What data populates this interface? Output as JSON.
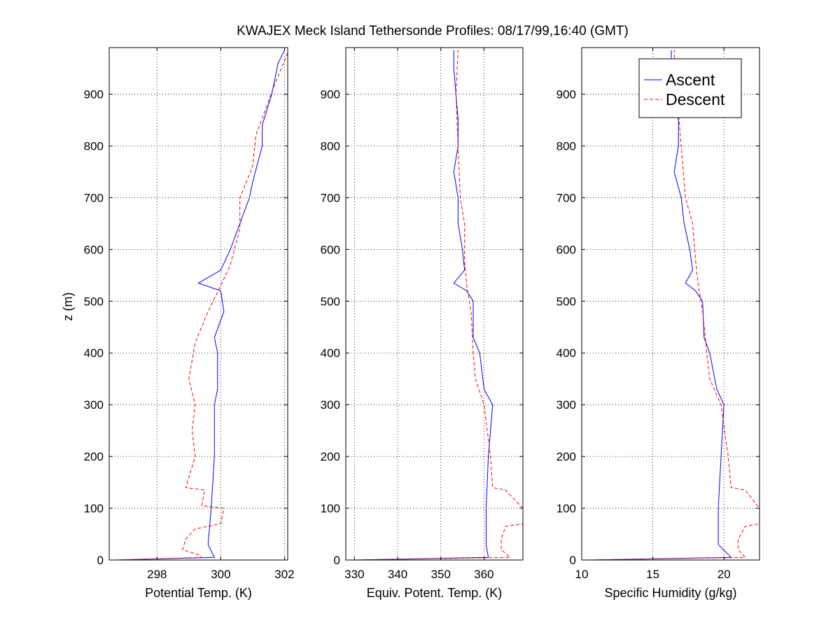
{
  "figure": {
    "title": "KWAJEX Meck Island Tethersonde Profiles: 08/17/99,16:40 (GMT)",
    "ylabel": "z (m)"
  },
  "legend": {
    "placement": "top-right of third panel",
    "items": [
      {
        "label": "Ascent",
        "color": "#0000ff",
        "dash": "solid"
      },
      {
        "label": "Descent",
        "color": "#ff0000",
        "dash": "dashed"
      }
    ]
  },
  "colors": {
    "ascent": "#0000ff",
    "descent": "#ff0000",
    "grid": "#000000"
  },
  "chart_data": [
    {
      "type": "line",
      "xlabel": "Potential Temp. (K)",
      "xlim": [
        296.5,
        302.1
      ],
      "xticks": [
        298,
        300,
        302
      ],
      "ylim": [
        0,
        990
      ],
      "yticks": [
        0,
        100,
        200,
        300,
        400,
        500,
        600,
        700,
        800,
        900
      ],
      "grid": true,
      "series": [
        {
          "name": "Ascent",
          "points": [
            [
              296.7,
              0
            ],
            [
              299.8,
              5
            ],
            [
              299.6,
              30
            ],
            [
              299.7,
              100
            ],
            [
              299.8,
              200
            ],
            [
              299.8,
              300
            ],
            [
              299.9,
              330
            ],
            [
              299.9,
              400
            ],
            [
              299.8,
              430
            ],
            [
              300.1,
              480
            ],
            [
              300,
              520
            ],
            [
              299.3,
              535
            ],
            [
              300,
              560
            ],
            [
              300.3,
              600
            ],
            [
              300.6,
              650
            ],
            [
              300.9,
              700
            ],
            [
              301,
              730
            ],
            [
              301.3,
              800
            ],
            [
              301.3,
              840
            ],
            [
              301.6,
              900
            ],
            [
              301.7,
              930
            ],
            [
              301.8,
              960
            ],
            [
              302,
              985
            ]
          ]
        },
        {
          "name": "Descent",
          "points": [
            [
              296.7,
              0
            ],
            [
              299.4,
              5
            ],
            [
              299.3,
              10
            ],
            [
              298.8,
              20
            ],
            [
              298.9,
              40
            ],
            [
              299.2,
              60
            ],
            [
              300,
              70
            ],
            [
              300.1,
              100
            ],
            [
              299.4,
              105
            ],
            [
              299.5,
              135
            ],
            [
              298.9,
              140
            ],
            [
              299.2,
              200
            ],
            [
              299.1,
              250
            ],
            [
              299.2,
              300
            ],
            [
              299,
              350
            ],
            [
              299.2,
              420
            ],
            [
              299.6,
              480
            ],
            [
              300,
              530
            ],
            [
              300.3,
              570
            ],
            [
              300.6,
              640
            ],
            [
              300.6,
              700
            ],
            [
              301,
              760
            ],
            [
              301.1,
              820
            ],
            [
              301.4,
              870
            ],
            [
              301.7,
              920
            ],
            [
              302.1,
              980
            ]
          ]
        }
      ]
    },
    {
      "type": "line",
      "xlabel": "Equiv. Potent. Temp. (K)",
      "xlim": [
        328,
        369
      ],
      "xticks": [
        330,
        340,
        350,
        360
      ],
      "ylim": [
        0,
        990
      ],
      "yticks": [
        0,
        100,
        200,
        300,
        400,
        500,
        600,
        700,
        800,
        900
      ],
      "grid": true,
      "series": [
        {
          "name": "Ascent",
          "points": [
            [
              330,
              0
            ],
            [
              361,
              5
            ],
            [
              360.5,
              30
            ],
            [
              360.5,
              100
            ],
            [
              361,
              200
            ],
            [
              362,
              300
            ],
            [
              360,
              330
            ],
            [
              359,
              400
            ],
            [
              357.5,
              430
            ],
            [
              357.5,
              500
            ],
            [
              356,
              520
            ],
            [
              353,
              535
            ],
            [
              355.5,
              560
            ],
            [
              355,
              600
            ],
            [
              354,
              650
            ],
            [
              354,
              700
            ],
            [
              353,
              750
            ],
            [
              354,
              800
            ],
            [
              354,
              850
            ],
            [
              353.5,
              900
            ],
            [
              353,
              950
            ],
            [
              353,
              985
            ]
          ]
        },
        {
          "name": "Descent",
          "points": [
            [
              330,
              0
            ],
            [
              366,
              5
            ],
            [
              364,
              20
            ],
            [
              364,
              40
            ],
            [
              365,
              65
            ],
            [
              369,
              70
            ],
            [
              369,
              100
            ],
            [
              365,
              135
            ],
            [
              362,
              140
            ],
            [
              361.5,
              200
            ],
            [
              360,
              300
            ],
            [
              358,
              350
            ],
            [
              357.5,
              400
            ],
            [
              357,
              480
            ],
            [
              356,
              530
            ],
            [
              355.5,
              580
            ],
            [
              355.5,
              650
            ],
            [
              354.5,
              700
            ],
            [
              354,
              800
            ],
            [
              353.5,
              900
            ],
            [
              354,
              985
            ]
          ]
        }
      ]
    },
    {
      "type": "line",
      "xlabel": "Specific Humidity (g/kg)",
      "xlim": [
        10,
        22.5
      ],
      "xticks": [
        10,
        15,
        20
      ],
      "ylim": [
        0,
        990
      ],
      "yticks": [
        0,
        100,
        200,
        300,
        400,
        500,
        600,
        700,
        800,
        900
      ],
      "grid": true,
      "series": [
        {
          "name": "Ascent",
          "points": [
            [
              10.5,
              0
            ],
            [
              20.5,
              5
            ],
            [
              19.6,
              30
            ],
            [
              19.6,
              100
            ],
            [
              19.8,
              200
            ],
            [
              20,
              300
            ],
            [
              19.5,
              330
            ],
            [
              19,
              400
            ],
            [
              18.6,
              430
            ],
            [
              18.5,
              500
            ],
            [
              18,
              520
            ],
            [
              17.3,
              535
            ],
            [
              17.8,
              560
            ],
            [
              17.6,
              600
            ],
            [
              17.2,
              650
            ],
            [
              17,
              700
            ],
            [
              16.5,
              750
            ],
            [
              16.8,
              800
            ],
            [
              16.8,
              850
            ],
            [
              16.5,
              900
            ],
            [
              16.3,
              950
            ],
            [
              16.3,
              985
            ]
          ]
        },
        {
          "name": "Descent",
          "points": [
            [
              10.5,
              0
            ],
            [
              21.5,
              5
            ],
            [
              21,
              20
            ],
            [
              21,
              40
            ],
            [
              21.5,
              65
            ],
            [
              22.5,
              70
            ],
            [
              22.5,
              100
            ],
            [
              21.5,
              135
            ],
            [
              20.5,
              140
            ],
            [
              20.3,
              200
            ],
            [
              19.8,
              300
            ],
            [
              19,
              350
            ],
            [
              18.8,
              400
            ],
            [
              18.5,
              480
            ],
            [
              18.2,
              530
            ],
            [
              18,
              580
            ],
            [
              17.8,
              650
            ],
            [
              17.3,
              700
            ],
            [
              17,
              800
            ],
            [
              16.7,
              900
            ],
            [
              16.5,
              985
            ]
          ]
        }
      ]
    }
  ]
}
